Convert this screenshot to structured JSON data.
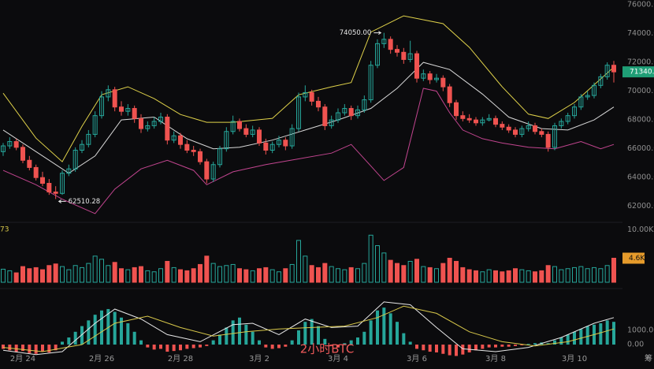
{
  "chart_data": {
    "type": "candlestick",
    "title": "2小时BTC",
    "categories": [
      null,
      null,
      null,
      "2月 24",
      null,
      null,
      null,
      null,
      null,
      null,
      null,
      null,
      null,
      null,
      null,
      "2月 26",
      null,
      null,
      null,
      null,
      null,
      null,
      null,
      null,
      null,
      null,
      null,
      "2月 28",
      null,
      null,
      null,
      null,
      null,
      null,
      null,
      null,
      null,
      null,
      null,
      "3月 2",
      null,
      null,
      null,
      null,
      null,
      null,
      null,
      null,
      null,
      null,
      null,
      "3月 4",
      null,
      null,
      null,
      null,
      null,
      null,
      null,
      null,
      null,
      null,
      null,
      "3月 6",
      null,
      null,
      null,
      null,
      null,
      null,
      null,
      null,
      null,
      null,
      null,
      "3月 8",
      null,
      null,
      null,
      null,
      null,
      null,
      null,
      null,
      null,
      null,
      null,
      "3月 10",
      null,
      null,
      null,
      null,
      null,
      null
    ],
    "candles": [
      [
        65800,
        66400,
        65500,
        66200
      ],
      [
        66200,
        66800,
        66000,
        66500
      ],
      [
        66500,
        66700,
        65900,
        66100
      ],
      [
        66100,
        66300,
        65000,
        65200
      ],
      [
        65200,
        65500,
        64500,
        64700
      ],
      [
        64700,
        64900,
        63800,
        64000
      ],
      [
        64000,
        64400,
        63400,
        63600
      ],
      [
        63600,
        63900,
        62800,
        63000
      ],
      [
        63000,
        63400,
        62510.28,
        62900
      ],
      [
        62900,
        64500,
        62800,
        64300
      ],
      [
        64300,
        64900,
        64100,
        64600
      ],
      [
        64600,
        66100,
        64400,
        65900
      ],
      [
        65900,
        66600,
        65700,
        66300
      ],
      [
        66300,
        67300,
        66100,
        67000
      ],
      [
        67000,
        68600,
        66800,
        68300
      ],
      [
        68300,
        70000,
        68100,
        69600
      ],
      [
        69600,
        70400,
        69300,
        70100
      ],
      [
        70100,
        70300,
        68600,
        68900
      ],
      [
        68900,
        69300,
        68300,
        68600
      ],
      [
        68600,
        69100,
        68300,
        68800
      ],
      [
        68800,
        69000,
        67800,
        68100
      ],
      [
        68100,
        68400,
        67100,
        67400
      ],
      [
        67400,
        67900,
        67200,
        67600
      ],
      [
        67600,
        68200,
        67400,
        67900
      ],
      [
        67900,
        68500,
        67700,
        68200
      ],
      [
        68200,
        68400,
        66300,
        66600
      ],
      [
        66600,
        67200,
        66400,
        66900
      ],
      [
        66900,
        67100,
        66000,
        66300
      ],
      [
        66300,
        66600,
        65700,
        65900
      ],
      [
        65900,
        66200,
        65500,
        65800
      ],
      [
        65800,
        66000,
        64900,
        65100
      ],
      [
        65100,
        65300,
        63600,
        63900
      ],
      [
        63900,
        65100,
        63700,
        64900
      ],
      [
        64900,
        66200,
        64700,
        66000
      ],
      [
        66000,
        67500,
        65800,
        67200
      ],
      [
        67200,
        68300,
        67000,
        67900
      ],
      [
        67900,
        68100,
        67200,
        67400
      ],
      [
        67400,
        67700,
        66800,
        67000
      ],
      [
        67000,
        67600,
        66800,
        67300
      ],
      [
        67300,
        67500,
        66200,
        66400
      ],
      [
        66400,
        66700,
        65600,
        65900
      ],
      [
        65900,
        66500,
        65700,
        66300
      ],
      [
        66300,
        66900,
        66100,
        66600
      ],
      [
        66600,
        66800,
        65900,
        66200
      ],
      [
        66200,
        67700,
        66000,
        67400
      ],
      [
        67400,
        69900,
        67200,
        69600
      ],
      [
        69600,
        70400,
        69300,
        69900
      ],
      [
        69900,
        70100,
        69000,
        69300
      ],
      [
        69300,
        69600,
        68600,
        68900
      ],
      [
        68900,
        69100,
        67300,
        67600
      ],
      [
        67600,
        68300,
        67400,
        68000
      ],
      [
        68000,
        68800,
        67800,
        68500
      ],
      [
        68500,
        69100,
        68300,
        68800
      ],
      [
        68800,
        69000,
        68000,
        68300
      ],
      [
        68300,
        69000,
        68100,
        68700
      ],
      [
        68700,
        69700,
        68500,
        69400
      ],
      [
        69400,
        72100,
        69200,
        71800
      ],
      [
        71800,
        73600,
        71600,
        73300
      ],
      [
        73300,
        74050,
        73000,
        73600
      ],
      [
        73600,
        73800,
        72600,
        72900
      ],
      [
        72900,
        73200,
        72400,
        72700
      ],
      [
        72700,
        73000,
        71900,
        72200
      ],
      [
        72200,
        73500,
        72000,
        72600
      ],
      [
        72600,
        72800,
        70600,
        70900
      ],
      [
        70900,
        71500,
        70700,
        71200
      ],
      [
        71200,
        71400,
        70500,
        70800
      ],
      [
        70800,
        71200,
        70600,
        70900
      ],
      [
        70900,
        71100,
        70000,
        70300
      ],
      [
        70300,
        70500,
        68900,
        69200
      ],
      [
        69200,
        69400,
        68000,
        68300
      ],
      [
        68300,
        68600,
        67900,
        68100
      ],
      [
        68100,
        68400,
        67800,
        68000
      ],
      [
        68000,
        68200,
        67600,
        67800
      ],
      [
        67800,
        68200,
        67600,
        68000
      ],
      [
        68000,
        68400,
        67900,
        68100
      ],
      [
        68100,
        68300,
        67500,
        67700
      ],
      [
        67700,
        67900,
        67300,
        67500
      ],
      [
        67500,
        67700,
        67100,
        67300
      ],
      [
        67300,
        67500,
        66800,
        67000
      ],
      [
        67000,
        67600,
        66800,
        67400
      ],
      [
        67400,
        67900,
        67200,
        67600
      ],
      [
        67600,
        67800,
        67000,
        67200
      ],
      [
        67200,
        67400,
        66800,
        67000
      ],
      [
        67000,
        67200,
        65800,
        66100
      ],
      [
        66100,
        67800,
        65900,
        67600
      ],
      [
        67600,
        68100,
        67400,
        67900
      ],
      [
        67900,
        68500,
        67700,
        68300
      ],
      [
        68300,
        69100,
        68100,
        68900
      ],
      [
        68900,
        69800,
        68700,
        69600
      ],
      [
        69600,
        70000,
        69400,
        69700
      ],
      [
        69700,
        70600,
        69500,
        70400
      ],
      [
        70400,
        71200,
        70200,
        71000
      ],
      [
        71000,
        72000,
        70800,
        71800
      ],
      [
        71800,
        72100,
        70600,
        71340.32
      ]
    ],
    "up_color": "#26a69a",
    "down_color": "#ef5350",
    "ylim": [
      61000,
      76330
    ],
    "yticks": [
      {
        "value": 76000,
        "label": "76000.00"
      },
      {
        "value": 74000,
        "label": "74000.00"
      },
      {
        "value": 72000,
        "label": "72000.00"
      },
      {
        "value": 70000,
        "label": "70000.00"
      },
      {
        "value": 68000,
        "label": "68000.00"
      },
      {
        "value": 66000,
        "label": "66000.00"
      },
      {
        "value": 64000,
        "label": "64000.00"
      },
      {
        "value": 62000,
        "label": "62000.00"
      }
    ],
    "high_label": "74050.00",
    "low_label": "62510.28",
    "last_price_color": "#1f9e76",
    "bands": [
      {
        "color": "#e0d24a",
        "x": [
          0,
          5,
          9,
          12,
          15,
          19,
          23,
          27,
          31,
          35,
          41,
          45,
          50,
          53,
          56,
          61,
          67,
          71,
          76,
          80,
          83,
          87,
          91,
          93
        ],
        "values": [
          69860,
          66740,
          65100,
          67560,
          69750,
          70300,
          69480,
          68380,
          67840,
          67840,
          68110,
          69750,
          70300,
          70600,
          74100,
          75230,
          74690,
          73040,
          70300,
          68400,
          68100,
          69210,
          70850,
          71670
        ]
      },
      {
        "color": "#d8d8d8",
        "x": [
          0,
          5,
          10,
          14,
          18,
          23,
          28,
          32,
          36,
          41,
          46,
          51,
          56,
          60,
          64,
          68,
          73,
          77,
          82,
          86,
          90,
          93
        ],
        "values": [
          67300,
          65800,
          64300,
          65500,
          68000,
          68200,
          66700,
          66000,
          66100,
          66600,
          67300,
          68000,
          68800,
          70200,
          72000,
          71500,
          69800,
          68200,
          67400,
          67300,
          68000,
          68900
        ]
      },
      {
        "color": "#c2458f",
        "x": [
          0,
          5,
          9,
          14,
          17,
          21,
          25,
          29,
          31,
          35,
          40,
          45,
          50,
          53,
          56,
          58,
          61,
          64,
          66,
          68,
          70,
          73,
          76,
          80,
          84,
          88,
          91,
          93
        ],
        "values": [
          64500,
          63500,
          62500,
          61500,
          63200,
          64600,
          65200,
          64500,
          63500,
          64400,
          64900,
          65300,
          65700,
          66300,
          64800,
          63800,
          64700,
          70200,
          70000,
          68500,
          67300,
          66700,
          66400,
          66100,
          66000,
          66500,
          66000,
          66300
        ]
      }
    ],
    "volume": {
      "label": "73",
      "values": [
        2.5,
        2.2,
        1.8,
        3.0,
        2.6,
        2.8,
        2.4,
        3.2,
        3.5,
        3.0,
        2.4,
        3.2,
        2.8,
        3.6,
        5.0,
        4.4,
        3.2,
        3.8,
        2.6,
        2.4,
        2.8,
        3.0,
        2.2,
        2.0,
        2.6,
        4.0,
        2.8,
        2.4,
        2.2,
        2.6,
        3.4,
        5.0,
        3.6,
        3.0,
        3.2,
        3.4,
        2.6,
        2.4,
        2.2,
        2.6,
        2.8,
        2.4,
        2.0,
        2.6,
        3.4,
        8.0,
        5.0,
        3.2,
        2.8,
        3.6,
        3.0,
        2.6,
        2.4,
        2.8,
        2.6,
        3.6,
        9.0,
        7.0,
        5.6,
        4.2,
        3.6,
        3.2,
        4.0,
        4.4,
        3.0,
        2.8,
        2.6,
        3.6,
        4.6,
        4.0,
        2.8,
        2.4,
        2.2,
        2.0,
        2.4,
        2.2,
        2.0,
        2.2,
        2.6,
        2.4,
        2.2,
        2.0,
        2.2,
        3.2,
        3.0,
        2.4,
        2.6,
        2.8,
        3.0,
        2.6,
        2.8,
        2.6,
        3.2,
        4.6
      ],
      "last_label": "4.6K",
      "last_color": "#e69b2b",
      "ylim": [
        0,
        11
      ],
      "yticks": [
        {
          "value": 10,
          "label": "10.00K"
        }
      ]
    },
    "macd": {
      "values": [
        -300,
        -400,
        -500,
        -450,
        -600,
        -650,
        -500,
        -550,
        -400,
        200,
        500,
        900,
        1300,
        1700,
        2100,
        2400,
        2500,
        2300,
        1900,
        1500,
        900,
        300,
        -200,
        -350,
        -300,
        -500,
        -450,
        -400,
        -300,
        -250,
        -200,
        -100,
        300,
        700,
        1200,
        1700,
        1900,
        1400,
        900,
        300,
        -200,
        -300,
        -250,
        -150,
        300,
        1000,
        1600,
        1800,
        1300,
        400,
        -100,
        -200,
        100,
        300,
        500,
        900,
        1700,
        2400,
        2600,
        2200,
        1600,
        800,
        200,
        -300,
        -400,
        -500,
        -550,
        -650,
        -750,
        -800,
        -700,
        -550,
        -400,
        -300,
        -200,
        -200,
        -150,
        -150,
        -100,
        -50,
        50,
        100,
        150,
        100,
        300,
        500,
        700,
        900,
        1100,
        1300,
        1400,
        1500,
        1700,
        1600
      ],
      "ylim": [
        -830,
        3440
      ],
      "yticks": [
        {
          "value": 1000,
          "label": "1000.00"
        },
        {
          "value": 0,
          "label": "0.00"
        }
      ],
      "lines": [
        {
          "color": "#e8e8e8",
          "x": [
            0,
            5,
            9,
            14,
            17,
            21,
            25,
            30,
            35,
            38,
            42,
            46,
            50,
            54,
            58,
            62,
            66,
            70,
            75,
            80,
            85,
            90,
            93
          ],
          "values": [
            -400,
            -700,
            -500,
            1500,
            2500,
            1800,
            700,
            200,
            1400,
            1500,
            700,
            1800,
            1200,
            1300,
            3000,
            2800,
            1200,
            -300,
            -500,
            -200,
            500,
            1500,
            1900
          ]
        },
        {
          "color": "#d8c84a",
          "x": [
            0,
            6,
            12,
            17,
            22,
            27,
            32,
            37,
            42,
            47,
            52,
            57,
            61,
            66,
            71,
            76,
            81,
            86,
            90,
            93
          ],
          "values": [
            -200,
            -500,
            0,
            1500,
            2000,
            1200,
            600,
            900,
            1100,
            1200,
            1300,
            1900,
            2700,
            2200,
            900,
            200,
            -100,
            200,
            700,
            1100
          ]
        }
      ]
    },
    "corner_label": "筹"
  }
}
